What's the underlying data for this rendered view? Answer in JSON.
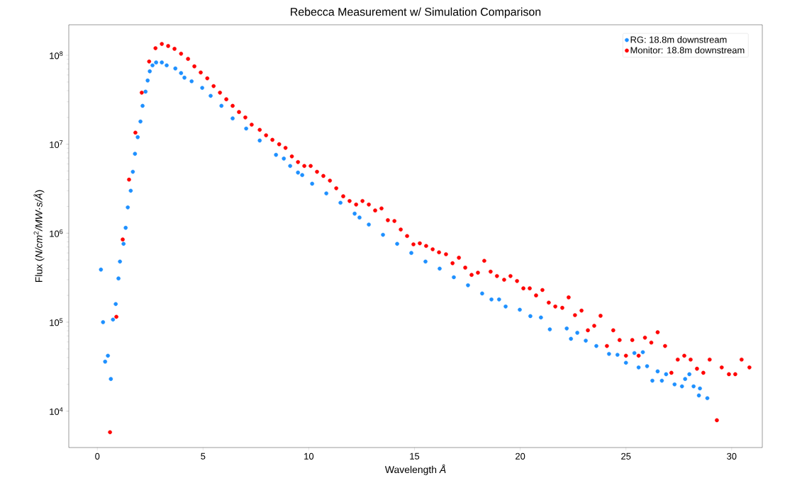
{
  "chart_data": {
    "type": "scatter",
    "title": "Rebecca Measurement w/ Simulation Comparison",
    "xlabel": "Wavelength *Å*",
    "ylabel": "Flux  (*N/cm*$^{2}$*/MW·s/Å*)",
    "xlim": [
      -1.35,
      31.45
    ],
    "ylim": [
      3900,
      220000000
    ],
    "xticks": [
      0,
      5,
      10,
      15,
      20,
      25,
      30
    ],
    "yticks": [
      {
        "value": 10000,
        "label": "10$^{4}$"
      },
      {
        "value": 100000,
        "label": "10$^{5}$"
      },
      {
        "value": 1000000,
        "label": "10$^{6}$"
      },
      {
        "value": 10000000,
        "label": "10$^{7}$"
      },
      {
        "value": 100000000,
        "label": "10$^{8}$"
      }
    ],
    "log": true,
    "legend": "top right",
    "grid": false,
    "series": [
      {
        "name": "RG: 18.8m downstream",
        "color": "#1e90ff",
        "x": [
          0.17,
          0.27,
          0.37,
          0.5,
          0.64,
          0.74,
          0.87,
          1.0,
          1.07,
          1.24,
          1.34,
          1.44,
          1.58,
          1.68,
          1.78,
          1.91,
          2.04,
          2.14,
          2.28,
          2.38,
          2.48,
          2.61,
          2.78,
          3.05,
          3.28,
          3.69,
          3.96,
          4.12,
          4.46,
          4.96,
          5.36,
          5.87,
          6.4,
          7.04,
          7.68,
          8.45,
          8.82,
          9.12,
          9.49,
          9.69,
          10.16,
          10.83,
          11.5,
          12.17,
          12.4,
          12.84,
          13.51,
          14.18,
          14.85,
          15.52,
          16.19,
          16.86,
          17.53,
          18.2,
          18.64,
          19.0,
          19.31,
          19.98,
          20.48,
          20.98,
          21.4,
          22.2,
          22.4,
          22.7,
          23.1,
          23.6,
          24.2,
          24.6,
          25.0,
          25.4,
          25.6,
          25.8,
          26.0,
          26.25,
          26.5,
          26.7,
          26.9,
          27.3,
          27.65,
          27.8,
          28.0,
          28.2,
          28.45,
          28.5,
          28.85
        ],
        "values": [
          390000,
          100000,
          36000,
          42000,
          23000,
          107000,
          160000,
          310000,
          480000,
          760000,
          1150000,
          1950000,
          3000000,
          4900000,
          7800000,
          12000000,
          18000000,
          27000000,
          39000000,
          52000000,
          66000000,
          77000000,
          83000000,
          83000000,
          77000000,
          71000000,
          63000000,
          56000000,
          51000000,
          43000000,
          35000000,
          27000000,
          19500000,
          15000000,
          11000000,
          7600000,
          6900000,
          5700000,
          4800000,
          4500000,
          3600000,
          2800000,
          2200000,
          1660000,
          1500000,
          1250000,
          960000,
          760000,
          600000,
          480000,
          400000,
          320000,
          260000,
          210000,
          180000,
          180000,
          150000,
          138000,
          117000,
          113000,
          83000,
          85000,
          65000,
          76000,
          62000,
          54000,
          44000,
          43000,
          35000,
          45000,
          31000,
          46000,
          32000,
          22000,
          28000,
          22000,
          26000,
          20000,
          19000,
          23000,
          26000,
          19000,
          15000,
          18000,
          14000
        ]
      },
      {
        "name": "Monitor: 18.8m downstream",
        "color": "#ff0000",
        "x": [
          0.6,
          0.9,
          1.2,
          1.5,
          1.8,
          2.1,
          2.45,
          2.75,
          3.05,
          3.35,
          3.65,
          3.96,
          4.29,
          4.59,
          4.89,
          5.2,
          5.5,
          5.8,
          6.1,
          6.4,
          6.7,
          7.0,
          7.3,
          7.68,
          7.98,
          8.28,
          8.6,
          8.9,
          9.2,
          9.49,
          9.79,
          10.09,
          10.39,
          10.69,
          11.0,
          11.3,
          11.63,
          11.93,
          12.24,
          12.54,
          12.84,
          13.14,
          13.44,
          13.74,
          14.05,
          14.35,
          14.65,
          14.95,
          15.25,
          15.55,
          15.86,
          16.16,
          16.49,
          16.8,
          17.1,
          17.4,
          17.7,
          18.0,
          18.3,
          18.6,
          18.9,
          19.24,
          19.54,
          19.85,
          20.15,
          20.45,
          20.75,
          21.05,
          21.35,
          21.66,
          21.99,
          22.29,
          22.59,
          22.9,
          23.2,
          23.5,
          23.8,
          24.1,
          24.4,
          24.7,
          25.0,
          25.3,
          25.6,
          25.9,
          26.2,
          26.5,
          26.85,
          27.15,
          27.45,
          27.76,
          28.06,
          28.36,
          28.66,
          28.96,
          29.3,
          29.53,
          29.87,
          30.17,
          30.47,
          30.84
        ],
        "values": [
          5800,
          115000,
          850000,
          4000000,
          13500000,
          38000000,
          85000000,
          120000000,
          134000000,
          127000000,
          118000000,
          104000000,
          91000000,
          75000000,
          64000000,
          55000000,
          45000000,
          38000000,
          32000000,
          27000000,
          23000000,
          20000000,
          16600000,
          14500000,
          12600000,
          11200000,
          10000000,
          9100000,
          7300000,
          6300000,
          5700000,
          5700000,
          4900000,
          4400000,
          3900000,
          3200000,
          2600000,
          2300000,
          2100000,
          2300000,
          2100000,
          1800000,
          1900000,
          1400000,
          1370000,
          1100000,
          930000,
          750000,
          770000,
          720000,
          660000,
          610000,
          580000,
          460000,
          530000,
          410000,
          340000,
          360000,
          490000,
          370000,
          330000,
          300000,
          330000,
          290000,
          240000,
          240000,
          200000,
          230000,
          166000,
          150000,
          145000,
          190000,
          120000,
          135000,
          81000,
          91000,
          118000,
          54000,
          81000,
          63000,
          42000,
          63000,
          42000,
          67000,
          59000,
          77000,
          54000,
          27000,
          38000,
          42000,
          38000,
          30000,
          27000,
          38000,
          7900,
          31000,
          26000,
          26000,
          38000,
          31000
        ]
      }
    ]
  }
}
